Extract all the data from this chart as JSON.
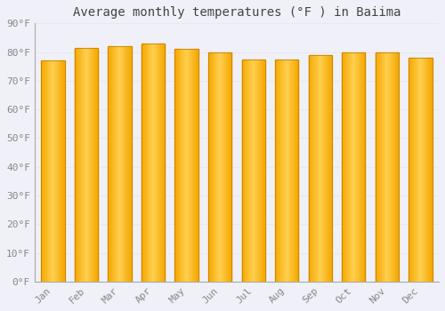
{
  "title": "Average monthly temperatures (°F ) in Baiima",
  "months": [
    "Jan",
    "Feb",
    "Mar",
    "Apr",
    "May",
    "Jun",
    "Jul",
    "Aug",
    "Sep",
    "Oct",
    "Nov",
    "Dec"
  ],
  "values": [
    77,
    81.5,
    82,
    83,
    81,
    80,
    77.5,
    77.5,
    79,
    80,
    80,
    78
  ],
  "ylim": [
    0,
    90
  ],
  "yticks": [
    0,
    10,
    20,
    30,
    40,
    50,
    60,
    70,
    80,
    90
  ],
  "ytick_labels": [
    "0°F",
    "10°F",
    "20°F",
    "30°F",
    "40°F",
    "50°F",
    "60°F",
    "70°F",
    "80°F",
    "90°F"
  ],
  "background_color": "#f0f0f8",
  "grid_color": "#e8e8f0",
  "bar_color_left": "#F5A800",
  "bar_color_center": "#FFD050",
  "bar_color_right": "#F5A800",
  "bar_edge_color": "#B87800",
  "title_fontsize": 10,
  "tick_fontsize": 8,
  "font_color": "#888888",
  "title_color": "#444444"
}
